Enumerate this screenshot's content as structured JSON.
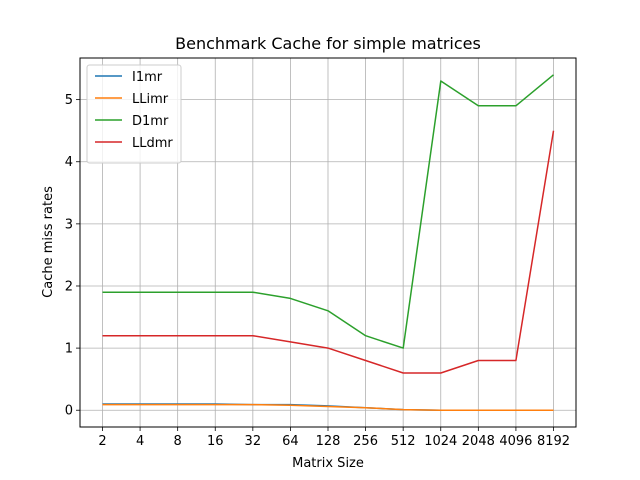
{
  "chart_data": {
    "type": "line",
    "title": "Benchmark Cache for simple matrices",
    "xlabel": "Matrix Size",
    "ylabel": "Cache miss rates",
    "categories": [
      "2",
      "4",
      "8",
      "16",
      "32",
      "64",
      "128",
      "256",
      "512",
      "1024",
      "2048",
      "4096",
      "8192"
    ],
    "ylim": [
      -0.27,
      5.67
    ],
    "yticks": [
      0,
      1,
      2,
      3,
      4,
      5
    ],
    "grid": true,
    "legend_position": "top-left",
    "series": [
      {
        "name": "I1mr",
        "color": "#1f77b4",
        "values": [
          0.1,
          0.1,
          0.1,
          0.1,
          0.09,
          0.09,
          0.07,
          0.04,
          0.01,
          0.0,
          0.0,
          0.0,
          0.0
        ]
      },
      {
        "name": "LLimr",
        "color": "#ff7f0e",
        "values": [
          0.09,
          0.09,
          0.09,
          0.09,
          0.09,
          0.08,
          0.06,
          0.04,
          0.01,
          0.0,
          0.0,
          0.0,
          0.0
        ]
      },
      {
        "name": "D1mr",
        "color": "#2ca02c",
        "values": [
          1.9,
          1.9,
          1.9,
          1.9,
          1.9,
          1.8,
          1.6,
          1.2,
          1.0,
          5.3,
          4.9,
          4.9,
          5.4
        ]
      },
      {
        "name": "LLdmr",
        "color": "#d62728",
        "values": [
          1.2,
          1.2,
          1.2,
          1.2,
          1.2,
          1.1,
          1.0,
          0.8,
          0.6,
          0.6,
          0.8,
          0.8,
          4.5
        ]
      }
    ]
  }
}
